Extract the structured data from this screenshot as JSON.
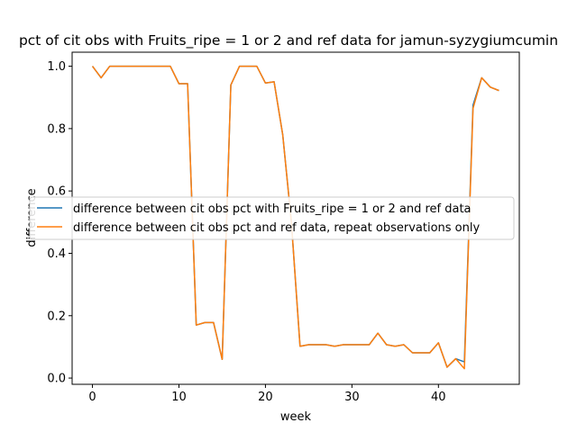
{
  "chart_data": {
    "type": "line",
    "title": "pct of cit obs with Fruits_ripe = 1 or 2 and ref data for jamun-syzygiumcumin",
    "xlabel": "week",
    "ylabel": "difference",
    "xlim": [
      -2.35,
      49.35
    ],
    "ylim": [
      -0.02,
      1.045
    ],
    "xticks": [
      0,
      10,
      20,
      30,
      40
    ],
    "yticks": [
      0.0,
      0.2,
      0.4,
      0.6,
      0.8,
      1.0
    ],
    "ytick_labels": [
      "0.0",
      "0.2",
      "0.4",
      "0.6",
      "0.8",
      "1.0"
    ],
    "x": [
      0,
      1,
      2,
      3,
      4,
      5,
      6,
      7,
      8,
      9,
      10,
      11,
      12,
      13,
      14,
      15,
      16,
      17,
      18,
      19,
      20,
      21,
      22,
      23,
      24,
      25,
      26,
      27,
      28,
      29,
      30,
      31,
      32,
      33,
      34,
      35,
      36,
      37,
      38,
      39,
      40,
      41,
      42,
      43,
      44,
      45,
      46,
      47
    ],
    "series": [
      {
        "name": "difference between cit obs pct with Fruits_ripe = 1 or 2 and ref data",
        "color": "#1f77b4",
        "values": [
          1.0,
          0.963,
          1.0,
          1.0,
          1.0,
          1.0,
          1.0,
          1.0,
          1.0,
          1.0,
          0.944,
          0.944,
          0.17,
          0.178,
          0.178,
          0.06,
          0.94,
          1.0,
          1.0,
          1.0,
          0.946,
          0.95,
          0.78,
          0.5,
          0.102,
          0.107,
          0.107,
          0.107,
          0.102,
          0.107,
          0.107,
          0.107,
          0.107,
          0.144,
          0.107,
          0.102,
          0.107,
          0.081,
          0.081,
          0.081,
          0.113,
          0.035,
          0.062,
          0.052,
          0.875,
          0.963,
          0.933,
          0.922
        ]
      },
      {
        "name": "difference between cit obs pct and ref data, repeat observations only",
        "color": "#ff7f0e",
        "values": [
          1.0,
          0.963,
          1.0,
          1.0,
          1.0,
          1.0,
          1.0,
          1.0,
          1.0,
          1.0,
          0.944,
          0.944,
          0.17,
          0.178,
          0.178,
          0.06,
          0.94,
          1.0,
          1.0,
          1.0,
          0.946,
          0.95,
          0.78,
          0.5,
          0.102,
          0.107,
          0.107,
          0.107,
          0.102,
          0.107,
          0.107,
          0.107,
          0.107,
          0.144,
          0.107,
          0.102,
          0.107,
          0.081,
          0.081,
          0.081,
          0.113,
          0.035,
          0.062,
          0.03,
          0.865,
          0.963,
          0.933,
          0.922
        ]
      }
    ],
    "legend_position": "center-left",
    "grid": false
  }
}
